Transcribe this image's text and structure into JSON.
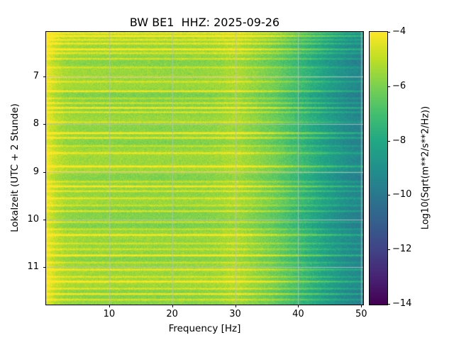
{
  "chart_data": {
    "type": "heatmap",
    "title": "BW BE1  HHZ: 2025-09-26",
    "xlabel": "Frequency [Hz]",
    "ylabel": "Lokalzeit (UTC + 2 Stunde)",
    "x_range_hz": [
      0,
      50.2
    ],
    "x_ticks": [
      10,
      20,
      30,
      40,
      50
    ],
    "x_tick_labels": [
      "10",
      "20",
      "30",
      "40",
      "50"
    ],
    "y_range_hours": [
      6.06,
      11.79
    ],
    "y_ticks": [
      7,
      8,
      9,
      10,
      11
    ],
    "y_tick_labels": [
      "7",
      "8",
      "9",
      "10",
      "11"
    ],
    "grid": true,
    "grid_color": "#b9bcc8",
    "colorbar": {
      "label": "Log10(Sqrt(m**2/s**2/Hz))",
      "range": [
        -14,
        -4
      ],
      "ticks": [
        -4,
        -6,
        -8,
        -10,
        -12,
        -14
      ],
      "tick_labels": [
        "−4",
        "−6",
        "−8",
        "−10",
        "−12",
        "−14"
      ],
      "colormap": "viridis",
      "colormap_stops": [
        [
          0.0,
          "#440154"
        ],
        [
          0.1,
          "#482475"
        ],
        [
          0.2,
          "#414487"
        ],
        [
          0.3,
          "#355f8d"
        ],
        [
          0.4,
          "#2a788e"
        ],
        [
          0.5,
          "#21918c"
        ],
        [
          0.6,
          "#22a884"
        ],
        [
          0.7,
          "#44bf70"
        ],
        [
          0.8,
          "#7ad151"
        ],
        [
          0.9,
          "#bddf26"
        ],
        [
          1.0,
          "#fde725"
        ]
      ]
    },
    "spectral_profile_db": [
      [
        0,
        -4.3
      ],
      [
        0.7,
        -4.7
      ],
      [
        1.5,
        -5.1
      ],
      [
        3,
        -5.5
      ],
      [
        6,
        -5.65
      ],
      [
        12,
        -5.7
      ],
      [
        20,
        -5.75
      ],
      [
        26,
        -5.7
      ],
      [
        30,
        -5.6
      ],
      [
        33,
        -5.85
      ],
      [
        36,
        -6.3
      ],
      [
        39,
        -7.0
      ],
      [
        42,
        -7.8
      ],
      [
        45,
        -8.6
      ],
      [
        48,
        -9.3
      ],
      [
        50.2,
        -9.6
      ]
    ],
    "events_hour_strength": [
      [
        6.08,
        1.6
      ],
      [
        6.14,
        2.2
      ],
      [
        6.22,
        1.2
      ],
      [
        6.3,
        1.5
      ],
      [
        6.42,
        2.0
      ],
      [
        6.5,
        1.1
      ],
      [
        6.62,
        1.4
      ],
      [
        6.8,
        1.0
      ],
      [
        7.0,
        1.3
      ],
      [
        7.1,
        1.1
      ],
      [
        7.3,
        1.9
      ],
      [
        7.45,
        1.0
      ],
      [
        7.55,
        1.3
      ],
      [
        7.65,
        2.3
      ],
      [
        7.74,
        1.6
      ],
      [
        7.95,
        1.0
      ],
      [
        8.18,
        2.2
      ],
      [
        8.28,
        1.7
      ],
      [
        8.45,
        1.1
      ],
      [
        8.6,
        1.3
      ],
      [
        8.88,
        1.9
      ],
      [
        9.0,
        1.2
      ],
      [
        9.2,
        1.1
      ],
      [
        9.3,
        2.0
      ],
      [
        9.4,
        1.4
      ],
      [
        9.55,
        1.2
      ],
      [
        9.7,
        1.0
      ],
      [
        9.82,
        1.6
      ],
      [
        10.05,
        1.3
      ],
      [
        10.2,
        1.1
      ],
      [
        10.32,
        1.8
      ],
      [
        10.5,
        1.2
      ],
      [
        10.62,
        1.0
      ],
      [
        10.75,
        2.4
      ],
      [
        10.9,
        1.1
      ],
      [
        11.05,
        1.5
      ],
      [
        11.2,
        1.2
      ],
      [
        11.3,
        1.9
      ],
      [
        11.45,
        1.4
      ],
      [
        11.56,
        2.1
      ],
      [
        11.68,
        1.3
      ]
    ],
    "row_noise_amplitude": 0.35,
    "pixel_noise_amplitude": 0.45,
    "render_seed": 7
  }
}
